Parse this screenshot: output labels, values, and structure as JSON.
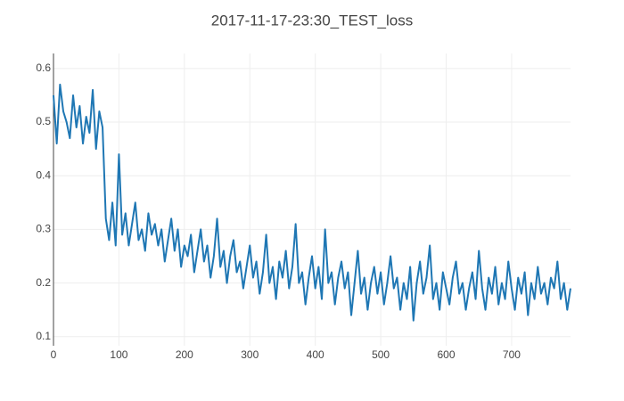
{
  "chart_data": {
    "type": "line",
    "title": "2017-11-17-23:30_TEST_loss",
    "x": [
      0,
      5,
      10,
      15,
      20,
      25,
      30,
      35,
      40,
      45,
      50,
      55,
      60,
      65,
      70,
      75,
      80,
      85,
      90,
      95,
      100,
      105,
      110,
      115,
      120,
      125,
      130,
      135,
      140,
      145,
      150,
      155,
      160,
      165,
      170,
      175,
      180,
      185,
      190,
      195,
      200,
      205,
      210,
      215,
      220,
      225,
      230,
      235,
      240,
      245,
      250,
      255,
      260,
      265,
      270,
      275,
      280,
      285,
      290,
      295,
      300,
      305,
      310,
      315,
      320,
      325,
      330,
      335,
      340,
      345,
      350,
      355,
      360,
      365,
      370,
      375,
      380,
      385,
      390,
      395,
      400,
      405,
      410,
      415,
      420,
      425,
      430,
      435,
      440,
      445,
      450,
      455,
      460,
      465,
      470,
      475,
      480,
      485,
      490,
      495,
      500,
      505,
      510,
      515,
      520,
      525,
      530,
      535,
      540,
      545,
      550,
      555,
      560,
      565,
      570,
      575,
      580,
      585,
      590,
      595,
      600,
      605,
      610,
      615,
      620,
      625,
      630,
      635,
      640,
      645,
      650,
      655,
      660,
      665,
      670,
      675,
      680,
      685,
      690,
      695,
      700,
      705,
      710,
      715,
      720,
      725,
      730,
      735,
      740,
      745,
      750,
      755,
      760,
      765,
      770,
      775,
      780,
      785,
      790
    ],
    "series": [
      {
        "name": "TEST_loss",
        "color": "#1f77b4",
        "values": [
          0.55,
          0.46,
          0.57,
          0.52,
          0.5,
          0.47,
          0.55,
          0.49,
          0.53,
          0.46,
          0.51,
          0.48,
          0.56,
          0.45,
          0.52,
          0.49,
          0.32,
          0.28,
          0.35,
          0.27,
          0.44,
          0.29,
          0.33,
          0.27,
          0.31,
          0.35,
          0.28,
          0.3,
          0.26,
          0.33,
          0.29,
          0.31,
          0.27,
          0.3,
          0.24,
          0.28,
          0.32,
          0.26,
          0.3,
          0.23,
          0.27,
          0.25,
          0.29,
          0.22,
          0.26,
          0.3,
          0.24,
          0.27,
          0.21,
          0.25,
          0.32,
          0.23,
          0.26,
          0.2,
          0.25,
          0.28,
          0.22,
          0.24,
          0.19,
          0.23,
          0.27,
          0.21,
          0.24,
          0.18,
          0.22,
          0.29,
          0.2,
          0.23,
          0.17,
          0.24,
          0.21,
          0.26,
          0.19,
          0.23,
          0.31,
          0.2,
          0.22,
          0.16,
          0.21,
          0.25,
          0.19,
          0.23,
          0.17,
          0.3,
          0.2,
          0.22,
          0.16,
          0.21,
          0.24,
          0.19,
          0.22,
          0.14,
          0.2,
          0.26,
          0.18,
          0.21,
          0.15,
          0.2,
          0.23,
          0.18,
          0.22,
          0.16,
          0.2,
          0.25,
          0.19,
          0.21,
          0.15,
          0.2,
          0.17,
          0.23,
          0.13,
          0.2,
          0.24,
          0.18,
          0.21,
          0.27,
          0.17,
          0.2,
          0.15,
          0.22,
          0.19,
          0.16,
          0.21,
          0.24,
          0.18,
          0.2,
          0.15,
          0.19,
          0.22,
          0.17,
          0.26,
          0.19,
          0.15,
          0.21,
          0.18,
          0.23,
          0.16,
          0.2,
          0.17,
          0.24,
          0.19,
          0.15,
          0.21,
          0.18,
          0.22,
          0.14,
          0.2,
          0.17,
          0.23,
          0.18,
          0.2,
          0.16,
          0.21,
          0.19,
          0.24,
          0.17,
          0.2,
          0.15,
          0.19
        ]
      }
    ],
    "xlim": [
      0,
      790
    ],
    "ylim": [
      0.083,
      0.628
    ],
    "xticks": [
      0,
      100,
      200,
      300,
      400,
      500,
      600,
      700
    ],
    "yticks": [
      0.1,
      0.2,
      0.3,
      0.4,
      0.5,
      0.6
    ],
    "grid": true
  }
}
